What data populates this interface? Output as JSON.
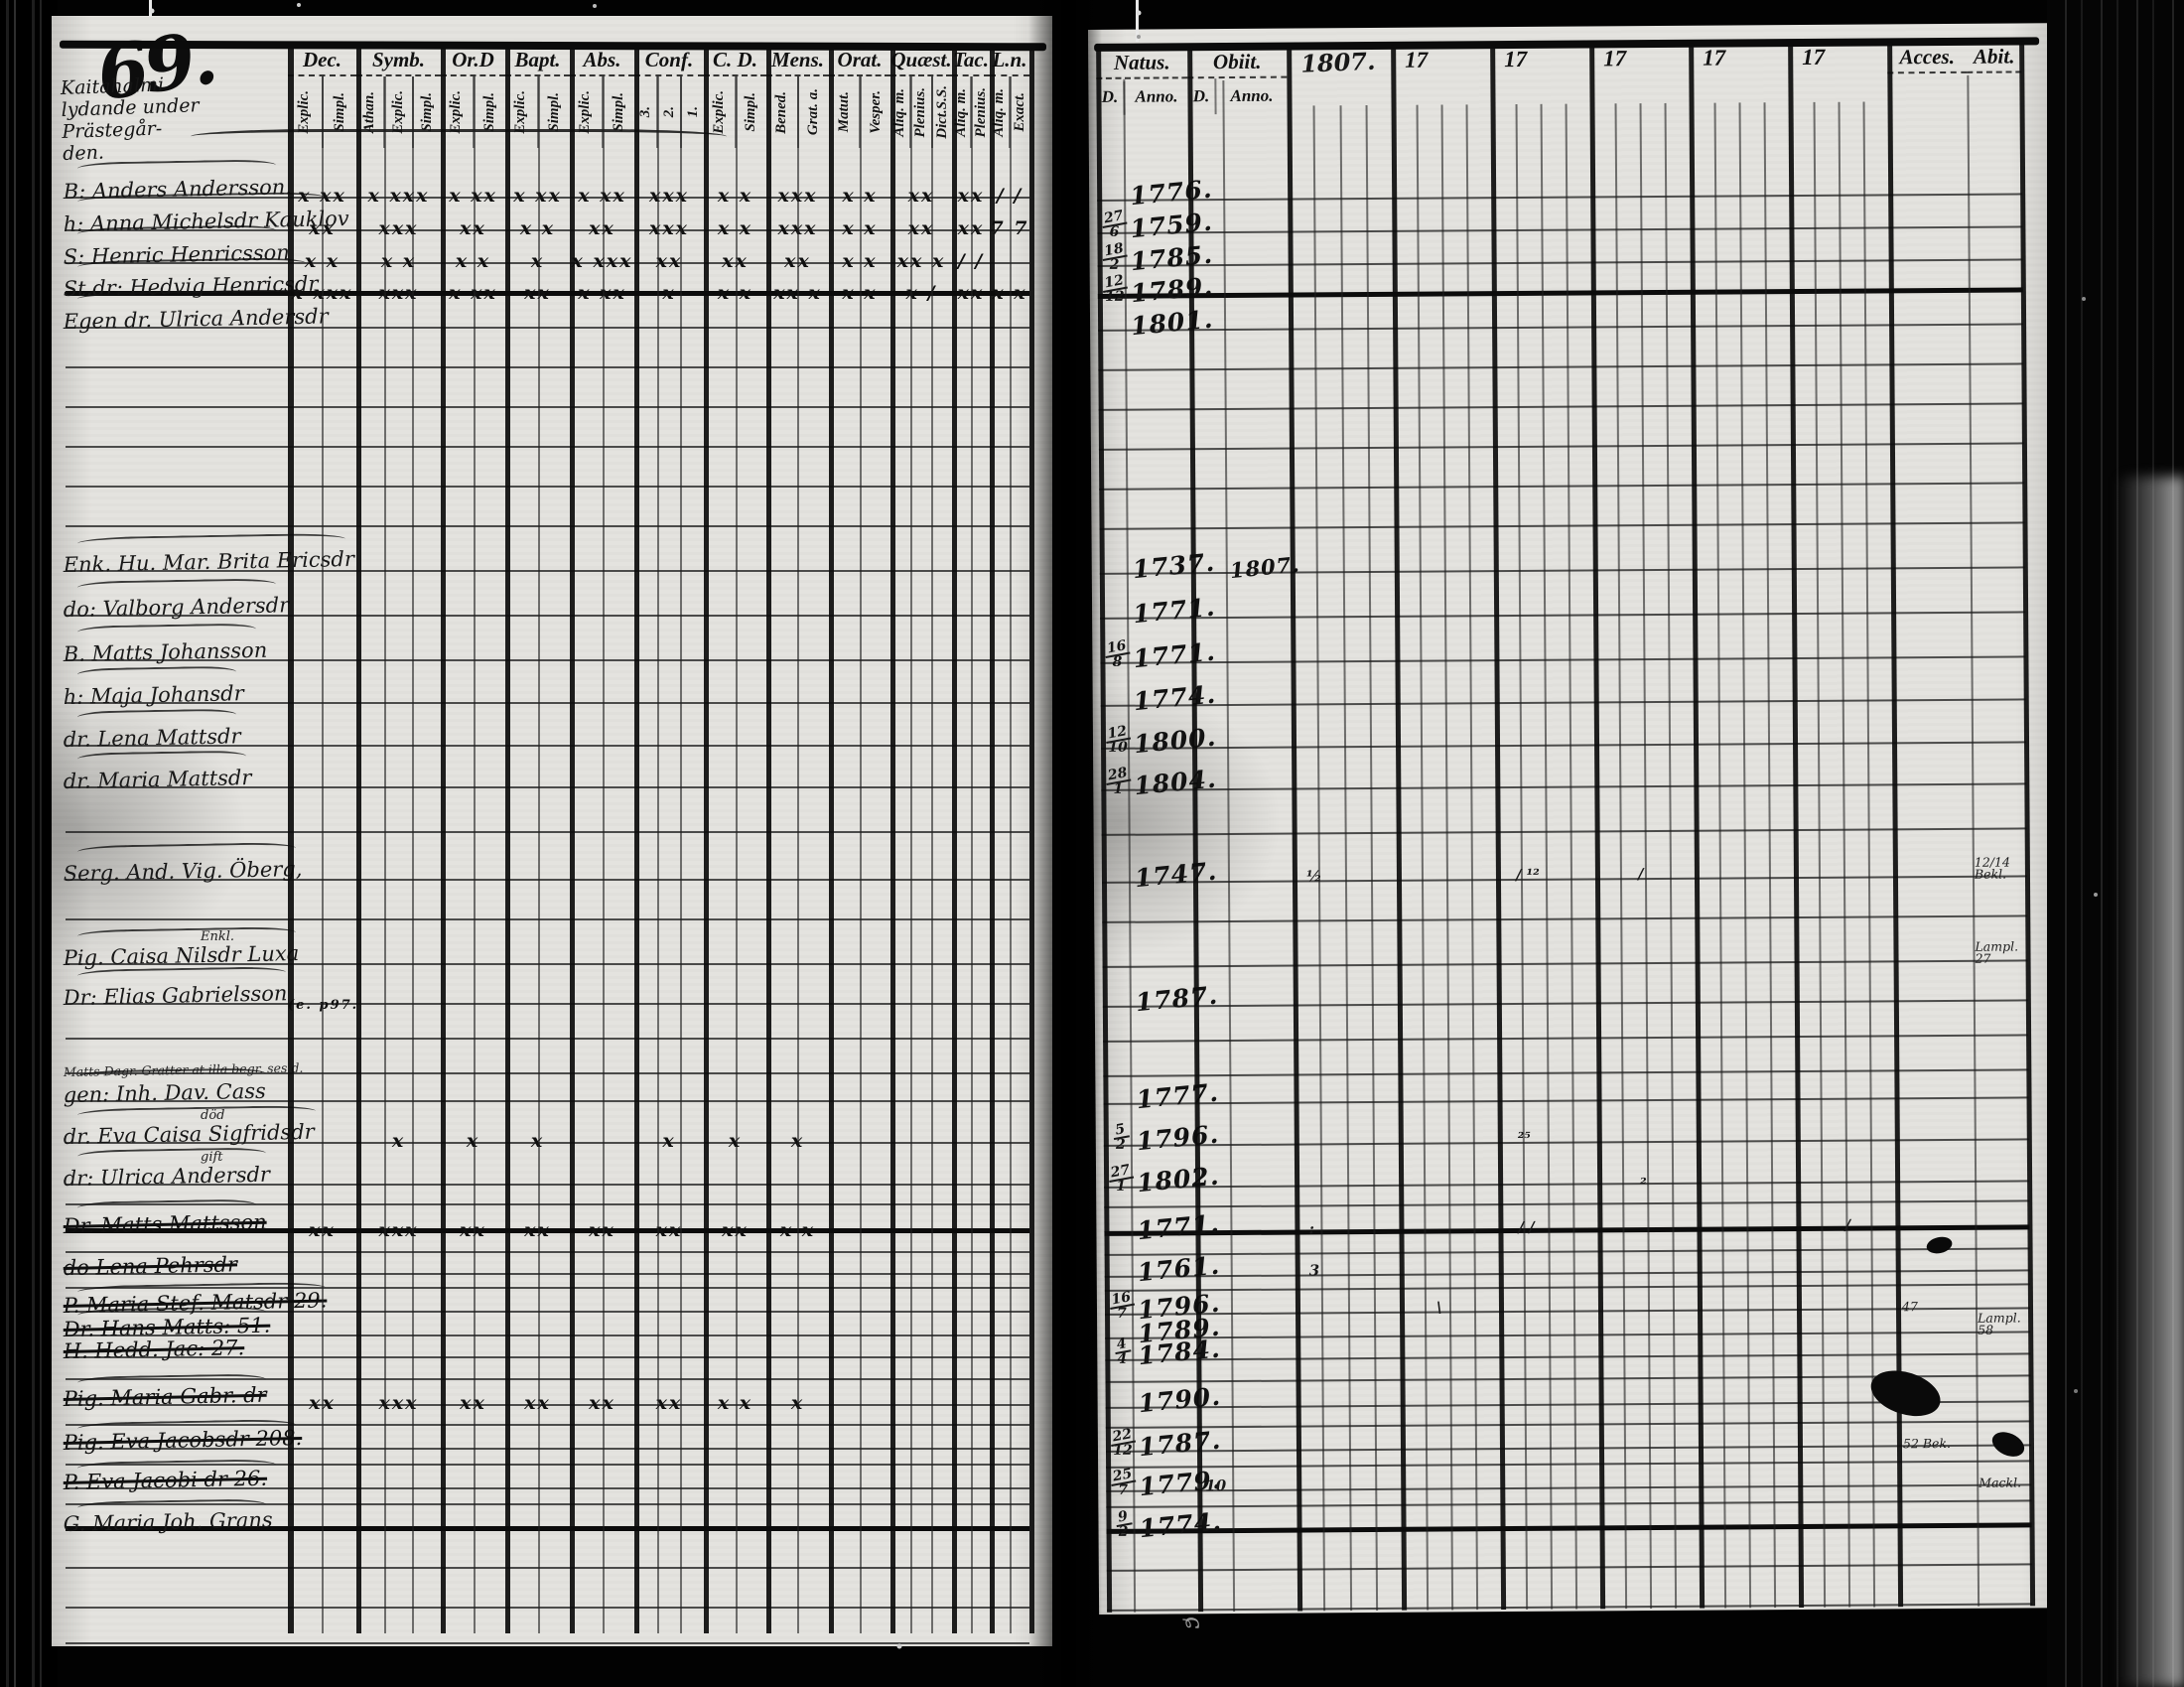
{
  "page": {
    "number": "69.",
    "place_line1": "Kaitahalmi",
    "place_line2": "lydande under Prästegår-",
    "place_line3": "den.",
    "bottom_mark": "ɕ"
  },
  "left_table": {
    "columns": [
      {
        "label": "Dec.",
        "subs": [
          "Explic.",
          "Simpl."
        ]
      },
      {
        "label": "Symb.",
        "subs": [
          "Athan.",
          "Explic.",
          "Simpl."
        ]
      },
      {
        "label": "Or.D",
        "subs": [
          "Explic.",
          "Simpl."
        ]
      },
      {
        "label": "Bapt.",
        "subs": [
          "Explic.",
          "Simpl."
        ]
      },
      {
        "label": "Abs.",
        "subs": [
          "Explic.",
          "Simpl."
        ]
      },
      {
        "label": "Conf.",
        "subs": [
          "3.",
          "2.",
          "1."
        ]
      },
      {
        "label": "C. D.",
        "subs": [
          "Explic.",
          "Simpl."
        ]
      },
      {
        "label": "Mens.",
        "subs": [
          "Bened.",
          "Grat. a."
        ]
      },
      {
        "label": "Orat.",
        "subs": [
          "Matut.",
          "Vesper."
        ]
      },
      {
        "label": "Quæst.",
        "subs": [
          "Aliq. m.",
          "Plenius.",
          "Dict.S.S."
        ]
      },
      {
        "label": "Tac.",
        "subs": [
          "Aliq. m.",
          "Plenius."
        ]
      },
      {
        "label": "L.n.",
        "subs": [
          "Aliq. m.",
          "Exact."
        ]
      }
    ]
  },
  "right_table": {
    "natus_label": "Natus.",
    "obiit_label": "Obiit.",
    "d_label": "D.",
    "anno_label": "Anno.",
    "year_headers": [
      "1807.",
      "17",
      "17",
      "17",
      "17",
      "17"
    ],
    "acces_label": "Acces.",
    "abit_label": "Abit."
  },
  "rows": [
    {
      "h": 33,
      "name": "B: Anders Andersson.",
      "marks": [
        "x xx",
        "x xxx",
        "x xx",
        "x xx",
        "x xx",
        "xxx",
        "x x",
        "xxx",
        "x x",
        "xx",
        "xx",
        "/ /"
      ],
      "natus_anno": "1776."
    },
    {
      "h": 33,
      "name": "h: Anna Michelsdr Kauklov",
      "marks": [
        "xx",
        "xxx",
        "xx",
        "x x",
        "xx",
        "xxx",
        "x x",
        "xxx",
        "x x",
        "xx",
        "xx",
        "7 7"
      ],
      "natus_d": {
        "t": "27",
        "b": "6"
      },
      "natus_anno": "1759."
    },
    {
      "h": 33,
      "name": "S: Henric Henricsson",
      "marks": [
        "x x",
        "x x",
        "x x",
        "x",
        "x xxx",
        "xx",
        "xx",
        "xx",
        "x x",
        "xx x",
        "/ /",
        ""
      ],
      "natus_d": {
        "t": "18",
        "b": "2"
      },
      "natus_anno": "1785."
    },
    {
      "h": 32,
      "tb": true,
      "name": "St.dr: Hedvig Henricsdr",
      "marks": [
        "x xxx",
        "xxx",
        "x xx",
        "xx",
        "x xx",
        "x",
        "x x",
        "xx x",
        "x x",
        "x /",
        "xx",
        "x x"
      ],
      "natus_d": {
        "t": "12",
        "b": "12"
      },
      "natus_anno": "1789."
    },
    {
      "h": 33,
      "name": "Egen dr. Ulrica Andersdr",
      "natus_anno": "1801."
    },
    {
      "h": 40,
      "name": ""
    },
    {
      "h": 40,
      "name": ""
    },
    {
      "h": 40,
      "name": ""
    },
    {
      "h": 40,
      "name": ""
    },
    {
      "h": 40,
      "name": ""
    },
    {
      "h": 45,
      "name": "Enk. Hu. Mar. Brita Ericsdr",
      "natus_anno": "1737.",
      "obiit_anno": "1807."
    },
    {
      "h": 45,
      "name": "do: Valborg Andersdr",
      "natus_anno": "1771."
    },
    {
      "h": 45,
      "name": "B. Matts Johansson",
      "natus_d": {
        "t": "16",
        "b": "8"
      },
      "natus_anno": "1771."
    },
    {
      "h": 43,
      "name": "h: Maja Johansdr",
      "natus_anno": "1774."
    },
    {
      "h": 43,
      "name": "dr. Lena Mattsdr",
      "natus_d": {
        "t": "12",
        "b": "10"
      },
      "natus_anno": "1800."
    },
    {
      "h": 42,
      "name": "dr. Maria Mattsdr",
      "natus_d": {
        "t": "28",
        "b": "1"
      },
      "natus_anno": "1804."
    },
    {
      "h": 45,
      "name": ""
    },
    {
      "h": 48,
      "name": "Serg. And. Vig. Öberg,",
      "natus_anno": "1747.",
      "ym": {
        "0": "½",
        "2": "/ ¹²",
        "3": "/"
      },
      "abit": "12/14 Bekl."
    },
    {
      "h": 40,
      "name": ""
    },
    {
      "h": 45,
      "name": "Pig. Caisa Nilsdr Luxa",
      "note": "Enkl.",
      "abit": "Lampl. 27"
    },
    {
      "h": 40,
      "name": "Dr: Elias Gabrielsson",
      "marks": [
        "(e. p97.",
        "",
        "",
        "",
        "",
        "",
        "",
        "",
        "",
        "",
        "",
        ""
      ],
      "natus_anno": "1787."
    },
    {
      "h": 35,
      "name": ""
    },
    {
      "h": 35,
      "name": "Matts Dagr. Gratter at illa begr. ses d.",
      "tiny": true
    },
    {
      "h": 28,
      "name": "gen: Inh. Dav. Cass",
      "natus_anno": "1777."
    },
    {
      "h": 42,
      "name": "dr. Eva Caisa Sigfridsdr",
      "note": "död",
      "marks": [
        "",
        "x",
        "x",
        "x",
        "",
        "x",
        "x",
        "x",
        "",
        "",
        "",
        ""
      ],
      "natus_d": {
        "t": "5",
        "b": "2"
      },
      "natus_anno": "1796.",
      "ym": {
        "2": "²⁵"
      }
    },
    {
      "h": 42,
      "name": "dr: Ulrica Andersdr",
      "note": "gift",
      "natus_d": {
        "t": "27",
        "b": "1"
      },
      "natus_anno": "1802.",
      "ym": {
        "3": "₂"
      }
    },
    {
      "h": 20,
      "name": ""
    },
    {
      "h": 28,
      "tb": true,
      "name": "Dr. Matts Mattsson",
      "struck": true,
      "marks": [
        "xx",
        "xxx",
        "xx",
        "xx",
        "xx",
        "xx",
        "xx",
        "x x",
        "",
        "",
        "",
        ""
      ],
      "natus_anno": "1771.",
      "ym": {
        "0": ":",
        "2": "/ /",
        "5": "/"
      }
    },
    {
      "h": 20,
      "name": ""
    },
    {
      "h": 22,
      "name": "do Lena Pehrsdr",
      "struck": true,
      "natus_anno": "1761.",
      "ym": {
        "0": "3"
      }
    },
    {
      "h": 14,
      "name": ""
    },
    {
      "h": 24,
      "name": "P. Maria Stef. Matsdr 29.",
      "struck": true,
      "natus_d": {
        "t": "16",
        "b": "7"
      },
      "natus_anno": "1796.",
      "ym": {
        "1": "\\"
      },
      "acces": "47"
    },
    {
      "h": 24,
      "name": "Dr. Hans Matts: 51.",
      "struck": true,
      "natus_anno": "1789.",
      "abit": "Lampl. 58"
    },
    {
      "h": 22,
      "name": "H. Hedd. Jac: 27.",
      "struck": true,
      "natus_d": {
        "t": "4",
        "b": "4"
      },
      "natus_anno": "1784."
    },
    {
      "h": 22,
      "name": ""
    },
    {
      "h": 26,
      "name": "Pig. Maria Gabr. dr",
      "struck": true,
      "marks": [
        "xx",
        "xxx",
        "xx",
        "xx",
        "xx",
        "xx",
        "x x",
        "x",
        "",
        "",
        "",
        ""
      ],
      "natus_anno": "1790."
    },
    {
      "h": 20,
      "name": ""
    },
    {
      "h": 24,
      "name": "Pig. Eva Jacobsdr 208.",
      "struck": true,
      "natus_d": {
        "t": "22",
        "b": "12"
      },
      "natus_anno": "1787.",
      "acces": "52 Bek."
    },
    {
      "h": 16,
      "name": ""
    },
    {
      "h": 24,
      "name": "P. Eva Jacobi dr 26.",
      "struck": true,
      "natus_d": {
        "t": "25",
        "b": "7"
      },
      "natus_anno": "1779.",
      "obiit_d": "10",
      "abit": "Mackl."
    },
    {
      "h": 16,
      "name": ""
    },
    {
      "h": 26,
      "tb": true,
      "name": "G. Maria Joh. Grans",
      "natus_d": {
        "t": "9",
        "b": "2"
      },
      "natus_anno": "1774."
    },
    {
      "h": 38,
      "name": ""
    },
    {
      "h": 40,
      "name": ""
    },
    {
      "h": 36,
      "name": ""
    }
  ]
}
